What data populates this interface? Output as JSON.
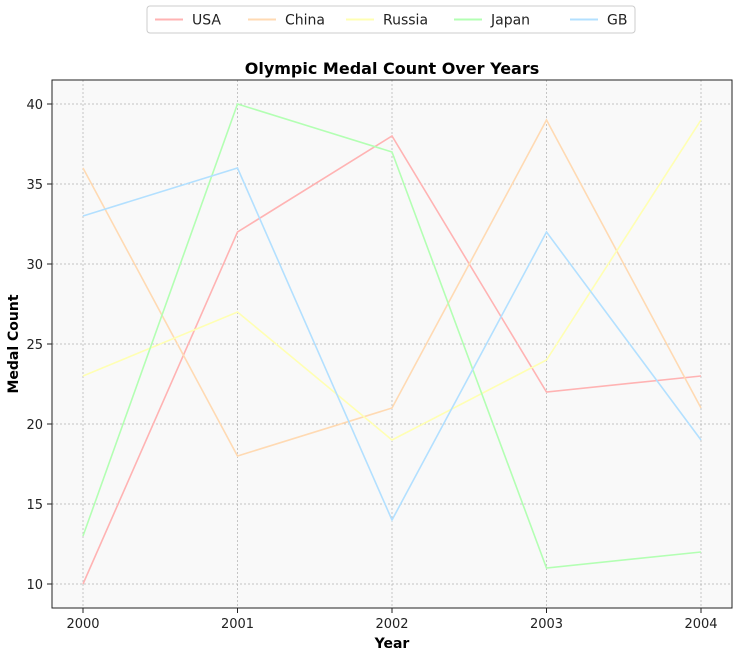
{
  "chart_data": {
    "type": "line",
    "title": "Olympic Medal Count Over Years",
    "xlabel": "Year",
    "ylabel": "Medal Count",
    "x": [
      "2000",
      "2001",
      "2002",
      "2003",
      "2004"
    ],
    "ylim": [
      8.5,
      41.5
    ],
    "yticks": [
      10,
      15,
      20,
      25,
      30,
      35,
      40
    ],
    "grid": true,
    "legend_position": "top-center",
    "series": [
      {
        "name": "USA",
        "color": "#ffb3b3",
        "values": [
          10,
          32,
          38,
          22,
          23
        ]
      },
      {
        "name": "China",
        "color": "#ffdab3",
        "values": [
          36,
          18,
          21,
          39,
          21
        ]
      },
      {
        "name": "Russia",
        "color": "#ffffb3",
        "values": [
          23,
          27,
          19,
          24,
          39
        ]
      },
      {
        "name": "Japan",
        "color": "#b3ffb3",
        "values": [
          13,
          40,
          37,
          11,
          12
        ]
      },
      {
        "name": "GB",
        "color": "#b3e0ff",
        "values": [
          33,
          36,
          14,
          32,
          19
        ]
      }
    ]
  }
}
